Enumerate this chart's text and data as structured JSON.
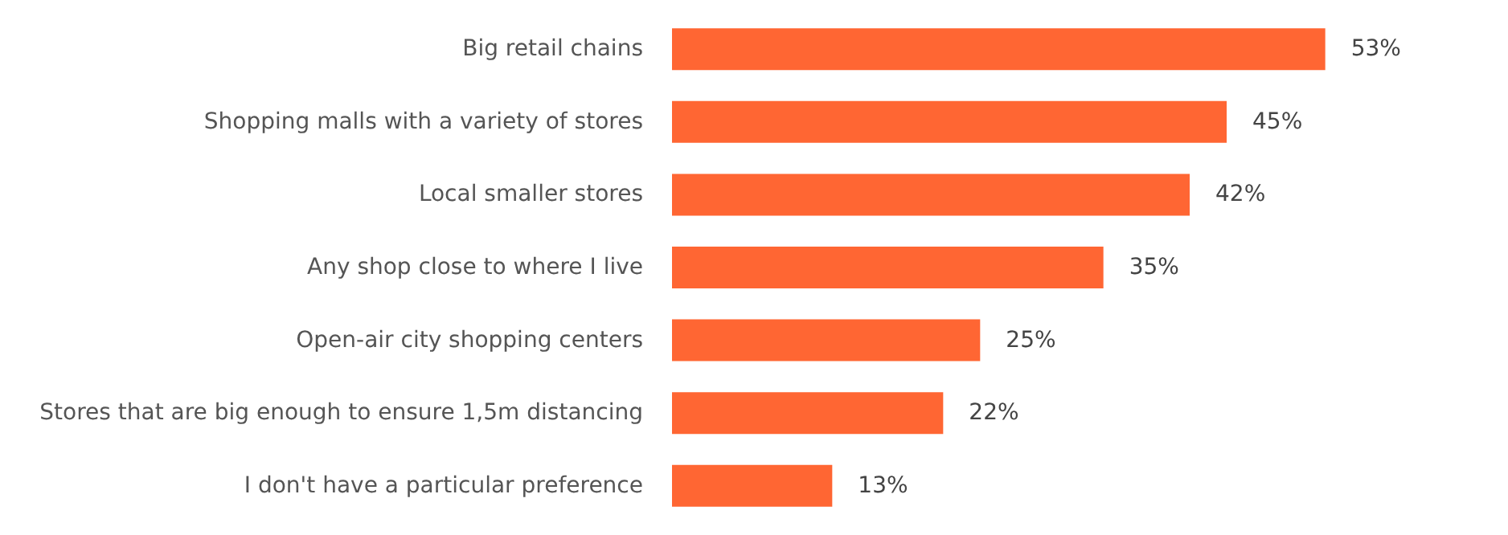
{
  "chart_data": {
    "type": "bar",
    "orientation": "horizontal",
    "categories": [
      "Big retail chains",
      "Shopping malls with a variety of stores",
      "Local smaller stores",
      "Any shop close to where I live",
      "Open-air city shopping centers",
      "Stores that are big enough to ensure 1,5m distancing",
      "I don't have a particular preference"
    ],
    "values": [
      53,
      45,
      42,
      35,
      25,
      22,
      13
    ],
    "value_labels": [
      "53%",
      "45%",
      "42%",
      "35%",
      "25%",
      "22%",
      "13%"
    ],
    "color": "#ff6633"
  }
}
